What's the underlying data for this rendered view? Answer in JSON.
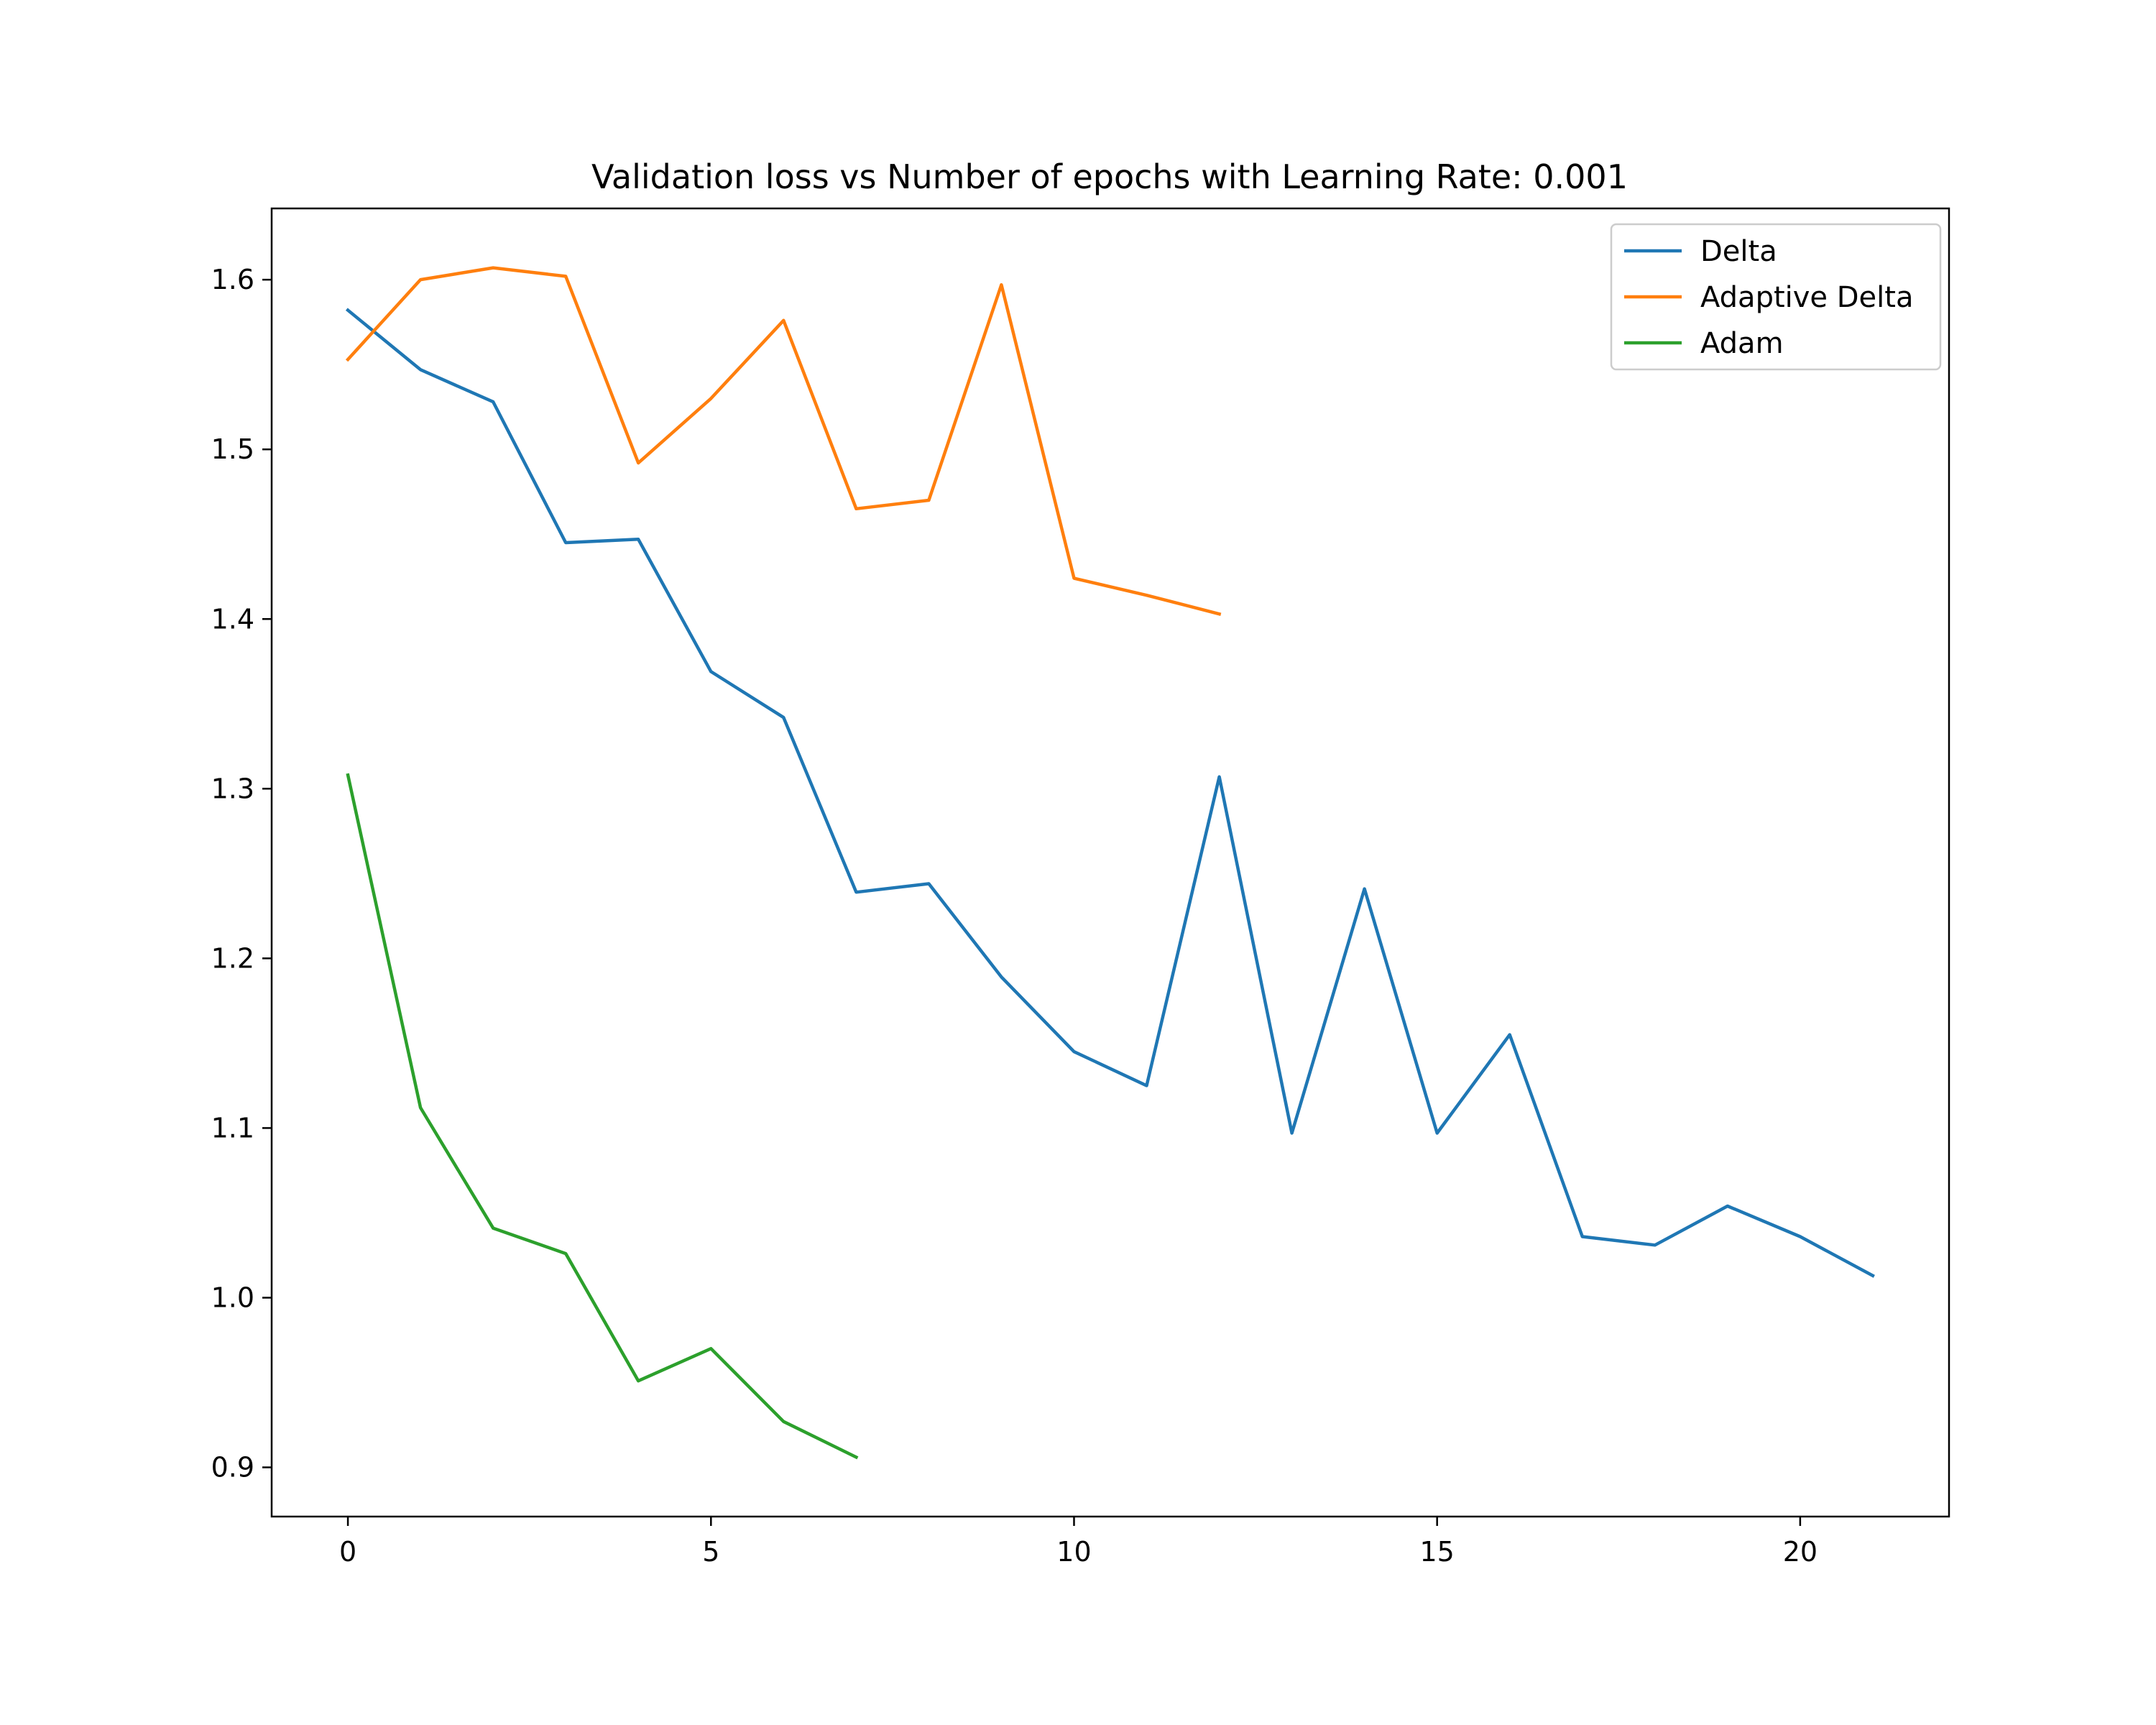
{
  "chart_data": {
    "type": "line",
    "title": "Validation loss vs Number of epochs with Learning Rate: 0.001",
    "xlabel": "",
    "ylabel": "",
    "xlim": [
      -1.05,
      22.05
    ],
    "ylim": [
      0.871,
      1.642
    ],
    "xticks": [
      0,
      5,
      10,
      15,
      20
    ],
    "yticks": [
      0.9,
      1.0,
      1.1,
      1.2,
      1.3,
      1.4,
      1.5,
      1.6
    ],
    "xtick_labels": [
      "0",
      "5",
      "10",
      "15",
      "20"
    ],
    "ytick_labels": [
      "0.9",
      "1.0",
      "1.1",
      "1.2",
      "1.3",
      "1.4",
      "1.5",
      "1.6"
    ],
    "grid": false,
    "legend_position": "top-right",
    "series": [
      {
        "name": "Delta",
        "color": "#1f77b4",
        "x": [
          0,
          1,
          2,
          3,
          4,
          5,
          6,
          7,
          8,
          9,
          10,
          11,
          12,
          13,
          14,
          15,
          16,
          17,
          18,
          19,
          20,
          21
        ],
        "values": [
          1.582,
          1.547,
          1.528,
          1.445,
          1.447,
          1.369,
          1.342,
          1.239,
          1.244,
          1.189,
          1.145,
          1.125,
          1.307,
          1.097,
          1.241,
          1.097,
          1.155,
          1.036,
          1.031,
          1.054,
          1.036,
          1.013
        ]
      },
      {
        "name": "Adaptive Delta",
        "color": "#ff7f0e",
        "x": [
          0,
          1,
          2,
          3,
          4,
          5,
          6,
          7,
          8,
          9,
          10,
          11,
          12
        ],
        "values": [
          1.553,
          1.6,
          1.607,
          1.602,
          1.492,
          1.53,
          1.576,
          1.465,
          1.47,
          1.597,
          1.424,
          1.414,
          1.403
        ]
      },
      {
        "name": "Adam",
        "color": "#2ca02c",
        "x": [
          0,
          1,
          2,
          3,
          4,
          5,
          6,
          7
        ],
        "values": [
          1.308,
          1.112,
          1.041,
          1.026,
          0.951,
          0.97,
          0.927,
          0.906
        ]
      }
    ]
  }
}
